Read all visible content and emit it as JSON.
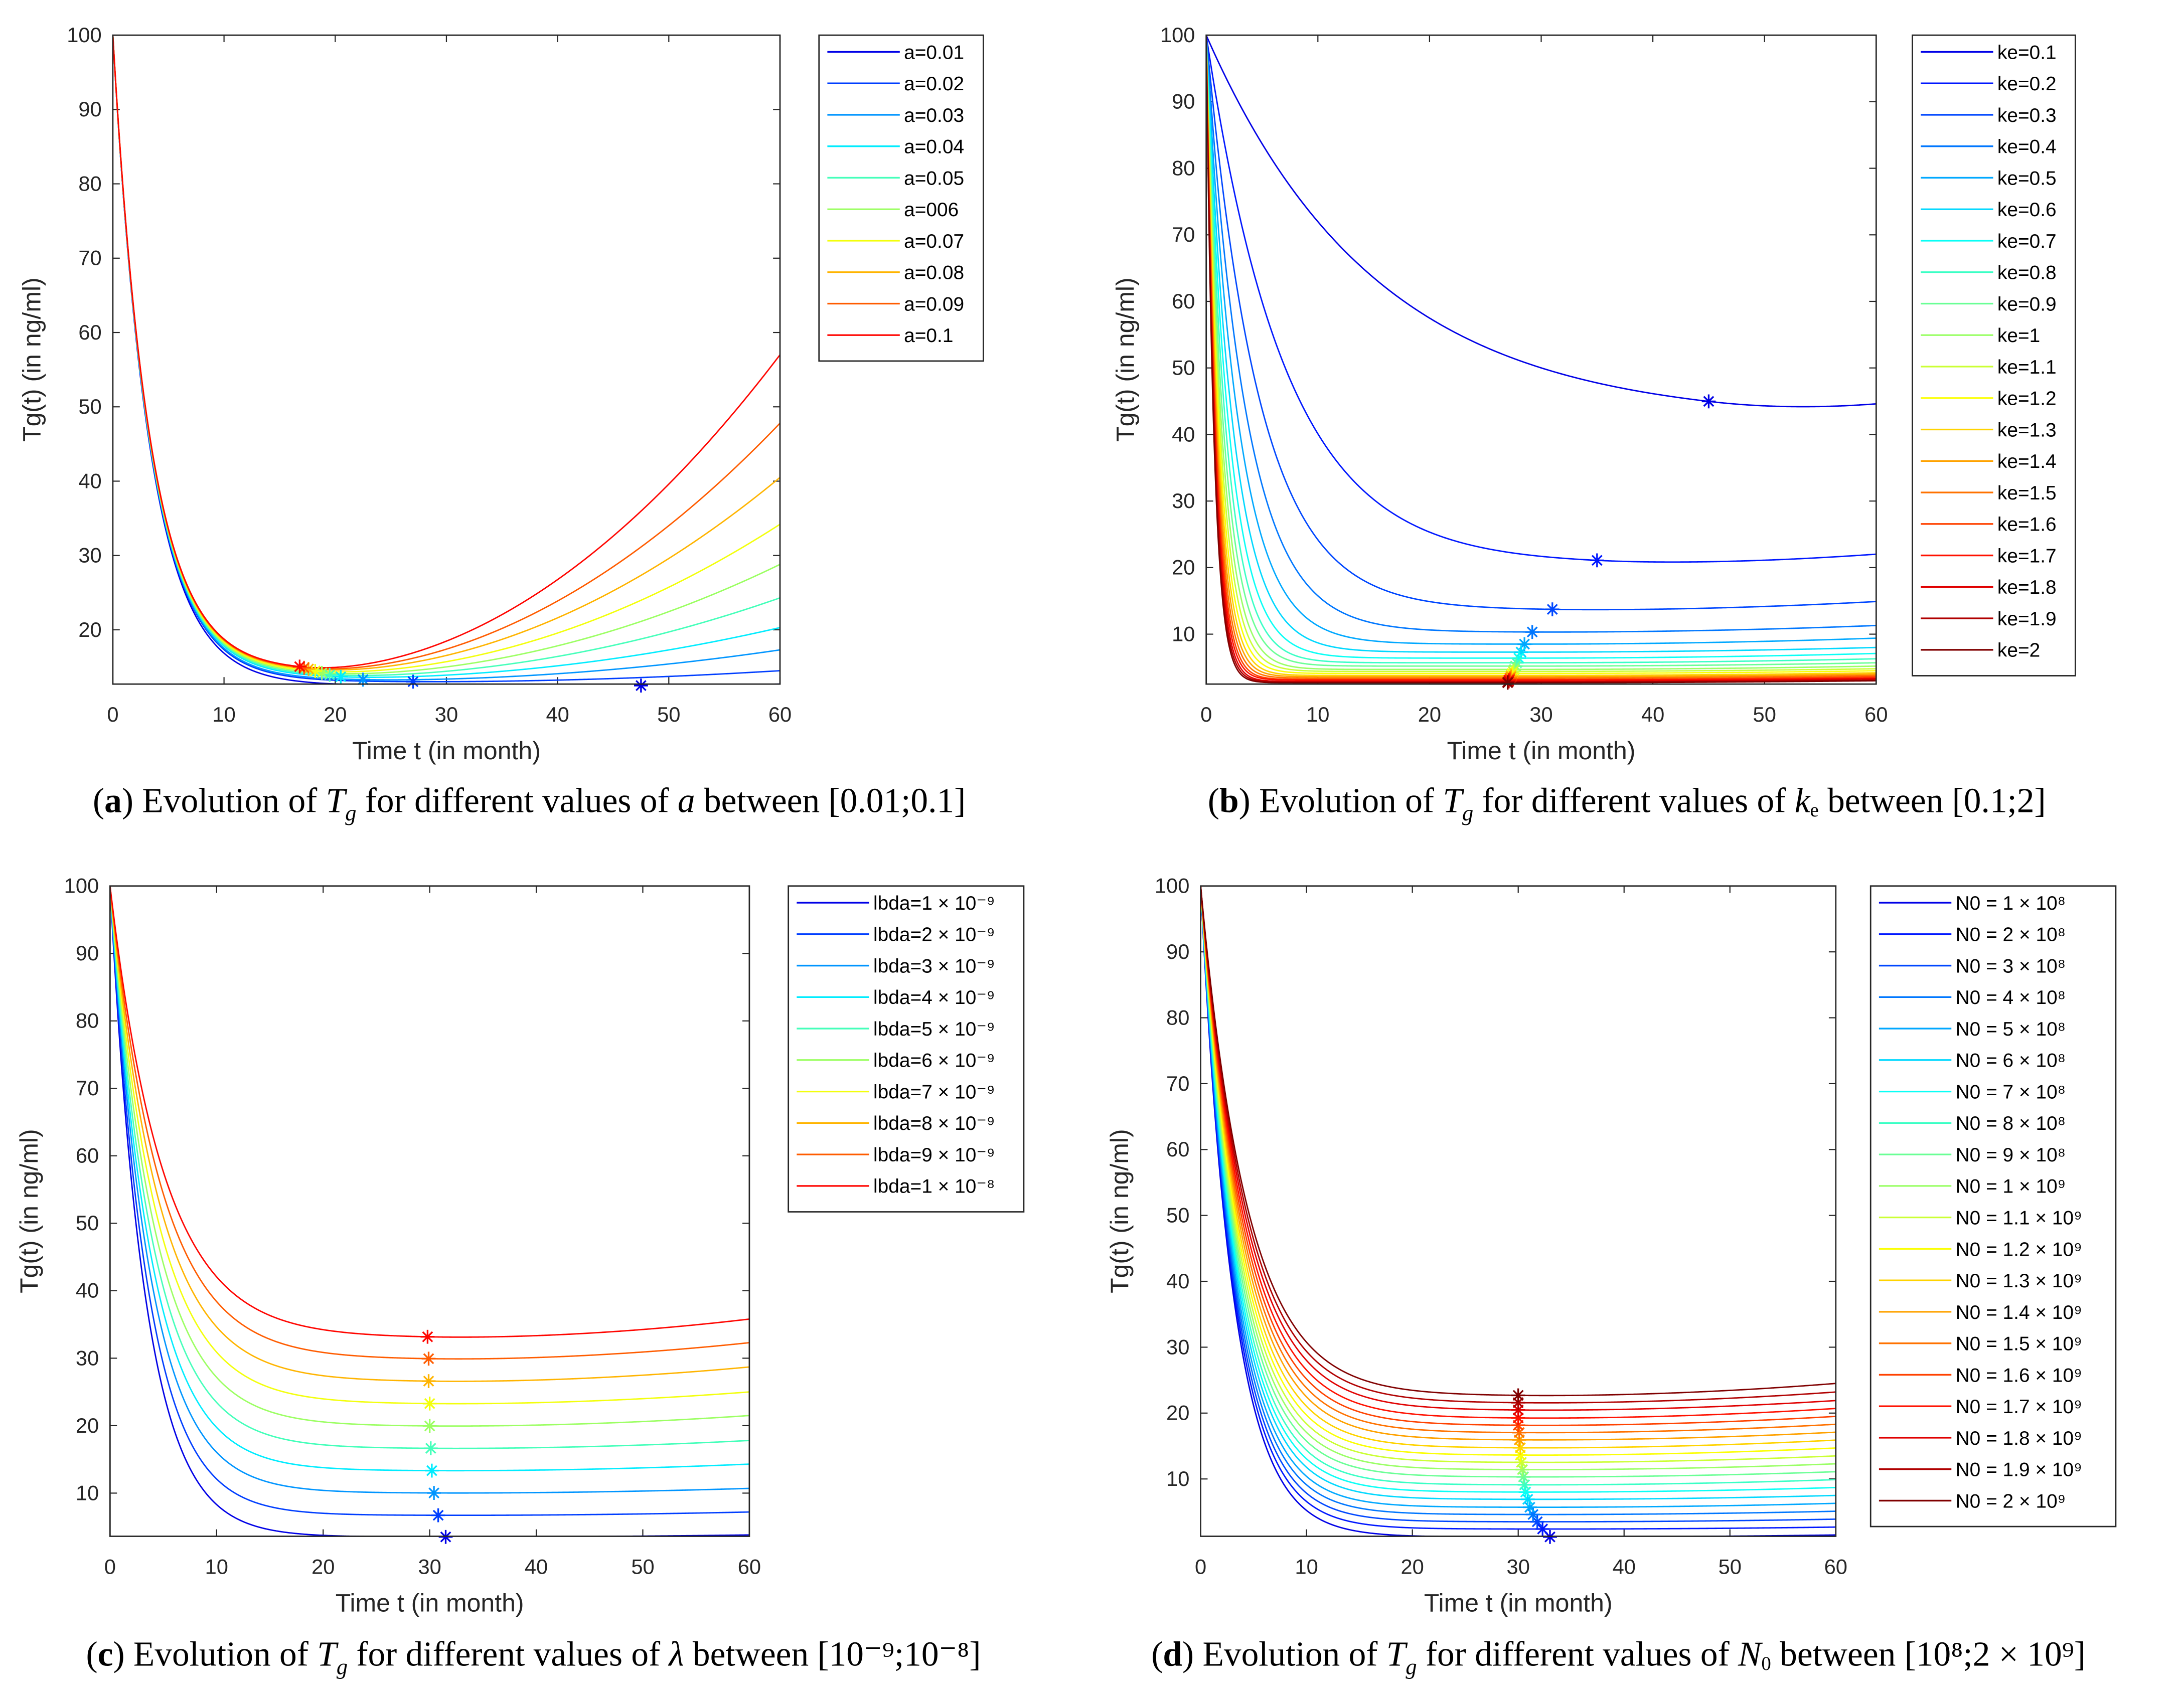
{
  "chart_data": [
    {
      "id": "a",
      "type": "line",
      "xlabel": "Time t (in month)",
      "ylabel": "Tg(t) (in ng/ml)",
      "xlim": [
        0,
        60
      ],
      "ylim": [
        12.7,
        100
      ],
      "xticks": [
        0,
        10,
        20,
        30,
        40,
        50,
        60
      ],
      "yticks": [
        20,
        30,
        40,
        50,
        60,
        70,
        80,
        90,
        100
      ],
      "legend_position": "outside-top-right",
      "caption": {
        "label": "a",
        "pre": "Evolution of ",
        "sym": "T",
        "sym_sub": "g",
        "mid": " for different values of ",
        "param": "a",
        "param_sub": "",
        "post": " between [0.01;0.1]"
      },
      "series": [
        {
          "name": "a=0.01",
          "decay_rate": 0.3,
          "min_t": 47.5,
          "min_value": 12.5,
          "end_value": 12.7
        },
        {
          "name": "a=0.02",
          "decay_rate": 0.3,
          "min_t": 27,
          "min_value": 13.0,
          "end_value": 14.5
        },
        {
          "name": "a=0.03",
          "decay_rate": 0.3,
          "min_t": 22.5,
          "min_value": 13.2,
          "end_value": 17.3
        },
        {
          "name": "a=0.04",
          "decay_rate": 0.3,
          "min_t": 20.5,
          "min_value": 13.5,
          "end_value": 20.3
        },
        {
          "name": "a=0.05",
          "decay_rate": 0.3,
          "min_t": 19.5,
          "min_value": 13.7,
          "end_value": 24.3
        },
        {
          "name": "a=006",
          "decay_rate": 0.3,
          "min_t": 18.8,
          "min_value": 13.9,
          "end_value": 28.8
        },
        {
          "name": "a=0.07",
          "decay_rate": 0.3,
          "min_t": 18.2,
          "min_value": 14.1,
          "end_value": 34.2
        },
        {
          "name": "a=0.08",
          "decay_rate": 0.3,
          "min_t": 17.6,
          "min_value": 14.3,
          "end_value": 40.5
        },
        {
          "name": "a=0.09",
          "decay_rate": 0.3,
          "min_t": 17.2,
          "min_value": 14.4,
          "end_value": 47.8
        },
        {
          "name": "a=0.1",
          "decay_rate": 0.3,
          "min_t": 16.8,
          "min_value": 14.5,
          "end_value": 57.0
        }
      ]
    },
    {
      "id": "b",
      "type": "line",
      "xlabel": "Time t (in month)",
      "ylabel": "Tg(t) (in ng/ml)",
      "xlim": [
        0,
        60
      ],
      "ylim": [
        2.5,
        100
      ],
      "xticks": [
        0,
        10,
        20,
        30,
        40,
        50,
        60
      ],
      "yticks": [
        10,
        20,
        30,
        40,
        50,
        60,
        70,
        80,
        90,
        100
      ],
      "legend_position": "outside-top-right",
      "caption": {
        "label": "b",
        "pre": "Evolution of ",
        "sym": "T",
        "sym_sub": "g",
        "mid": " for different values of ",
        "param": "k",
        "param_sub": "e",
        "post": " between [0.1;2]"
      },
      "series": [
        {
          "name": "ke=0.1",
          "decay_rate": 0.066,
          "min_t": 45,
          "min_value": 42.0,
          "end_value": 43.5
        },
        {
          "name": "ke=0.2",
          "decay_rate": 0.14,
          "min_t": 35,
          "min_value": 20.5,
          "end_value": 22.0
        },
        {
          "name": "ke=0.3",
          "decay_rate": 0.21,
          "min_t": 31,
          "min_value": 13.6,
          "end_value": 14.9
        },
        {
          "name": "ke=0.4",
          "decay_rate": 0.28,
          "min_t": 29.2,
          "min_value": 10.3,
          "end_value": 11.3
        },
        {
          "name": "ke=0.5",
          "decay_rate": 0.35,
          "min_t": 28.5,
          "min_value": 8.5,
          "end_value": 9.4
        },
        {
          "name": "ke=0.6",
          "decay_rate": 0.42,
          "min_t": 28.2,
          "min_value": 7.3,
          "end_value": 8.0
        },
        {
          "name": "ke=0.7",
          "decay_rate": 0.49,
          "min_t": 28,
          "min_value": 6.4,
          "end_value": 7.1
        },
        {
          "name": "ke=0.8",
          "decay_rate": 0.56,
          "min_t": 27.8,
          "min_value": 5.7,
          "end_value": 6.3
        },
        {
          "name": "ke=0.9",
          "decay_rate": 0.63,
          "min_t": 27.7,
          "min_value": 5.2,
          "end_value": 5.7
        },
        {
          "name": "ke=1",
          "decay_rate": 0.7,
          "min_t": 27.6,
          "min_value": 4.7,
          "end_value": 5.2
        },
        {
          "name": "ke=1.1",
          "decay_rate": 0.77,
          "min_t": 27.5,
          "min_value": 4.4,
          "end_value": 4.8
        },
        {
          "name": "ke=1.2",
          "decay_rate": 0.84,
          "min_t": 27.4,
          "min_value": 4.1,
          "end_value": 4.5
        },
        {
          "name": "ke=1.3",
          "decay_rate": 0.91,
          "min_t": 27.3,
          "min_value": 3.8,
          "end_value": 4.2
        },
        {
          "name": "ke=1.4",
          "decay_rate": 0.98,
          "min_t": 27.3,
          "min_value": 3.6,
          "end_value": 4.0
        },
        {
          "name": "ke=1.5",
          "decay_rate": 1.05,
          "min_t": 27.2,
          "min_value": 3.4,
          "end_value": 3.8
        },
        {
          "name": "ke=1.6",
          "decay_rate": 1.12,
          "min_t": 27.2,
          "min_value": 3.2,
          "end_value": 3.6
        },
        {
          "name": "ke=1.7",
          "decay_rate": 1.19,
          "min_t": 27.1,
          "min_value": 3.1,
          "end_value": 3.4
        },
        {
          "name": "ke=1.8",
          "decay_rate": 1.26,
          "min_t": 27.1,
          "min_value": 2.9,
          "end_value": 3.3
        },
        {
          "name": "ke=1.9",
          "decay_rate": 1.33,
          "min_t": 27,
          "min_value": 2.8,
          "end_value": 3.1
        },
        {
          "name": "ke=2",
          "decay_rate": 1.4,
          "min_t": 27,
          "min_value": 2.7,
          "end_value": 3.0
        }
      ]
    },
    {
      "id": "c",
      "type": "line",
      "xlabel": "Time t (in month)",
      "ylabel": "Tg(t) (in ng/ml)",
      "xlim": [
        0,
        60
      ],
      "ylim": [
        3.6,
        100
      ],
      "xticks": [
        0,
        10,
        20,
        30,
        40,
        50,
        60
      ],
      "yticks": [
        10,
        20,
        30,
        40,
        50,
        60,
        70,
        80,
        90,
        100
      ],
      "legend_position": "outside-top-right",
      "caption": {
        "label": "c",
        "pre": "Evolution of ",
        "sym": "T",
        "sym_sub": "g",
        "mid": " for different values of ",
        "param": "λ",
        "param_sub": "",
        "post": " between [10⁻⁹;10⁻⁸]"
      },
      "series": [
        {
          "name": "lbda=1 × 10⁻⁹",
          "decay_rate": 0.3,
          "min_t": 31.5,
          "min_value": 3.5,
          "end_value": 3.8
        },
        {
          "name": "lbda=2 × 10⁻⁹",
          "decay_rate": 0.285,
          "min_t": 30.8,
          "min_value": 6.7,
          "end_value": 7.2
        },
        {
          "name": "lbda=3 × 10⁻⁹",
          "decay_rate": 0.27,
          "min_t": 30.4,
          "min_value": 10.0,
          "end_value": 10.7
        },
        {
          "name": "lbda=4 × 10⁻⁹",
          "decay_rate": 0.26,
          "min_t": 30.2,
          "min_value": 13.3,
          "end_value": 14.3
        },
        {
          "name": "lbda=5 × 10⁻⁹",
          "decay_rate": 0.25,
          "min_t": 30.1,
          "min_value": 16.6,
          "end_value": 17.8
        },
        {
          "name": "lbda=6 × 10⁻⁹",
          "decay_rate": 0.24,
          "min_t": 30,
          "min_value": 19.9,
          "end_value": 21.5
        },
        {
          "name": "lbda=7 × 10⁻⁹",
          "decay_rate": 0.23,
          "min_t": 30,
          "min_value": 23.2,
          "end_value": 25.0
        },
        {
          "name": "lbda=8 × 10⁻⁹",
          "decay_rate": 0.22,
          "min_t": 29.9,
          "min_value": 26.5,
          "end_value": 28.7
        },
        {
          "name": "lbda=9 × 10⁻⁹",
          "decay_rate": 0.21,
          "min_t": 29.9,
          "min_value": 29.8,
          "end_value": 32.3
        },
        {
          "name": "lbda=1 × 10⁻⁸",
          "decay_rate": 0.2,
          "min_t": 29.8,
          "min_value": 33.0,
          "end_value": 35.8
        }
      ]
    },
    {
      "id": "d",
      "type": "line",
      "xlabel": "Time t (in month)",
      "ylabel": "Tg(t) (in ng/ml)",
      "xlim": [
        0,
        60
      ],
      "ylim": [
        1.3,
        100
      ],
      "xticks": [
        0,
        10,
        20,
        30,
        40,
        50,
        60
      ],
      "yticks": [
        10,
        20,
        30,
        40,
        50,
        60,
        70,
        80,
        90,
        100
      ],
      "legend_position": "outside-top-right",
      "caption": {
        "label": "d",
        "pre": "Evolution of ",
        "sym": "T",
        "sym_sub": "g",
        "mid": " for different values of ",
        "param": "N",
        "param_sub": "0",
        "post": " between [10⁸;2 × 10⁹]"
      },
      "series": [
        {
          "name": "N0 = 1 × 10⁸",
          "decay_rate": 0.32,
          "min_t": 33,
          "min_value": 1.2,
          "end_value": 1.5
        },
        {
          "name": "N0 = 2 × 10⁸",
          "decay_rate": 0.315,
          "min_t": 32.3,
          "min_value": 2.4,
          "end_value": 2.7
        },
        {
          "name": "N0 = 3 × 10⁸",
          "decay_rate": 0.31,
          "min_t": 31.8,
          "min_value": 3.5,
          "end_value": 3.9
        },
        {
          "name": "N0 = 4 × 10⁸",
          "decay_rate": 0.305,
          "min_t": 31.4,
          "min_value": 4.6,
          "end_value": 5.1
        },
        {
          "name": "N0 = 5 × 10⁸",
          "decay_rate": 0.3,
          "min_t": 31.1,
          "min_value": 5.7,
          "end_value": 6.3
        },
        {
          "name": "N0 = 6 × 10⁸",
          "decay_rate": 0.295,
          "min_t": 30.9,
          "min_value": 6.9,
          "end_value": 7.5
        },
        {
          "name": "N0 = 7 × 10⁸",
          "decay_rate": 0.29,
          "min_t": 30.7,
          "min_value": 8.0,
          "end_value": 8.7
        },
        {
          "name": "N0 = 8 × 10⁸",
          "decay_rate": 0.285,
          "min_t": 30.6,
          "min_value": 9.1,
          "end_value": 9.9
        },
        {
          "name": "N0 = 9 × 10⁸",
          "decay_rate": 0.28,
          "min_t": 30.5,
          "min_value": 10.3,
          "end_value": 11.1
        },
        {
          "name": "N0 = 1 × 10⁹",
          "decay_rate": 0.275,
          "min_t": 30.4,
          "min_value": 11.4,
          "end_value": 12.3
        },
        {
          "name": "N0 = 1.1 × 10⁹",
          "decay_rate": 0.27,
          "min_t": 30.3,
          "min_value": 12.5,
          "end_value": 13.5
        },
        {
          "name": "N0 = 1.2 × 10⁹",
          "decay_rate": 0.265,
          "min_t": 30.2,
          "min_value": 13.6,
          "end_value": 14.7
        },
        {
          "name": "N0 = 1.3 × 10⁹",
          "decay_rate": 0.26,
          "min_t": 30.2,
          "min_value": 14.7,
          "end_value": 15.9
        },
        {
          "name": "N0 = 1.4 × 10⁹",
          "decay_rate": 0.255,
          "min_t": 30.1,
          "min_value": 15.9,
          "end_value": 17.1
        },
        {
          "name": "N0 = 1.5 × 10⁹",
          "decay_rate": 0.25,
          "min_t": 30.1,
          "min_value": 17.0,
          "end_value": 18.3
        },
        {
          "name": "N0 = 1.6 × 10⁹",
          "decay_rate": 0.245,
          "min_t": 30,
          "min_value": 18.1,
          "end_value": 19.5
        },
        {
          "name": "N0 = 1.7 × 10⁹",
          "decay_rate": 0.24,
          "min_t": 30,
          "min_value": 19.2,
          "end_value": 20.7
        },
        {
          "name": "N0 = 1.8 × 10⁹",
          "decay_rate": 0.235,
          "min_t": 30,
          "min_value": 20.4,
          "end_value": 21.9
        },
        {
          "name": "N0 = 1.9 × 10⁹",
          "decay_rate": 0.23,
          "min_t": 30,
          "min_value": 21.5,
          "end_value": 23.2
        },
        {
          "name": "N0 = 2 × 10⁹",
          "decay_rate": 0.225,
          "min_t": 30,
          "min_value": 22.6,
          "end_value": 24.5
        }
      ]
    }
  ]
}
